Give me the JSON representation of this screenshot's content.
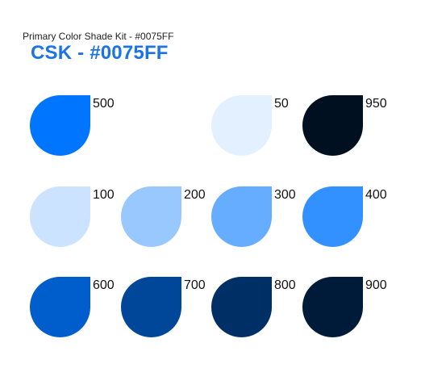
{
  "header": {
    "subtitle": "Primary Color Shade Kit - #0075FF",
    "title": "CSK - #0075FF"
  },
  "swatches": [
    {
      "label": "500",
      "color": "#0075FF"
    },
    {
      "label": "50",
      "color": "#E3F0FF"
    },
    {
      "label": "950",
      "color": "#011021"
    },
    {
      "label": "100",
      "color": "#CCE3FF"
    },
    {
      "label": "200",
      "color": "#99C8FF"
    },
    {
      "label": "300",
      "color": "#66ACFF"
    },
    {
      "label": "400",
      "color": "#3391FF"
    },
    {
      "label": "600",
      "color": "#005ECC"
    },
    {
      "label": "700",
      "color": "#004699"
    },
    {
      "label": "800",
      "color": "#002F66"
    },
    {
      "label": "900",
      "color": "#001A3A"
    }
  ]
}
